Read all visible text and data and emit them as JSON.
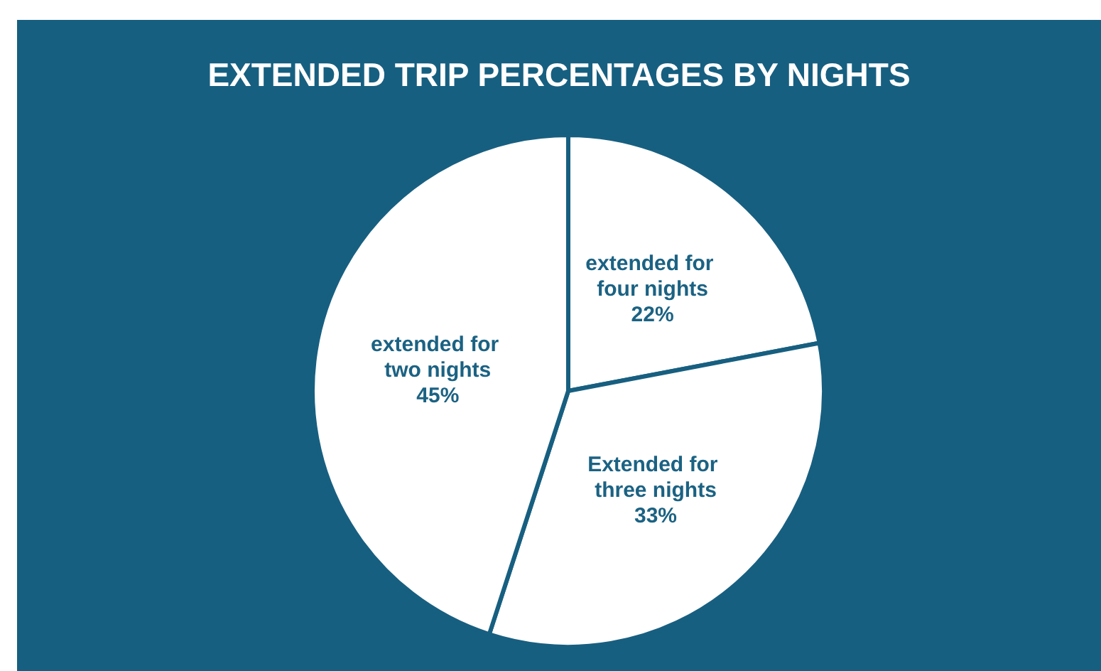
{
  "chart_data": {
    "type": "pie",
    "title": "EXTENDED TRIP PERCENTAGES BY NIGHTS",
    "categories": [
      "extended for four nights",
      "Extended for three nights",
      "extended for two nights"
    ],
    "values": [
      22,
      33,
      45
    ],
    "value_labels": [
      "22%",
      "33%",
      "45%"
    ],
    "colors": [
      "#ffffff",
      "#ffffff",
      "#ffffff"
    ],
    "legend": false
  }
}
